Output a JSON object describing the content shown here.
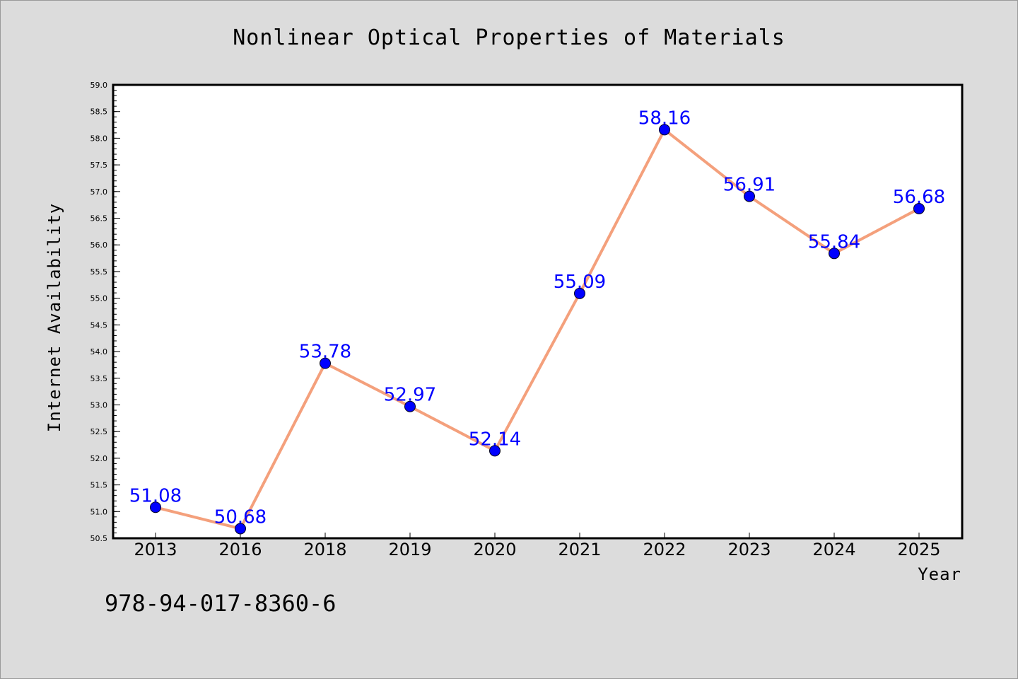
{
  "chart_data": {
    "type": "line",
    "title": "Nonlinear Optical Properties of Materials",
    "xlabel": "Year",
    "ylabel": "Internet Availability",
    "categories": [
      "2013",
      "2016",
      "2018",
      "2019",
      "2020",
      "2021",
      "2022",
      "2023",
      "2024",
      "2025"
    ],
    "values": [
      51.08,
      50.68,
      53.78,
      52.97,
      52.14,
      55.09,
      58.16,
      56.91,
      55.84,
      56.68
    ],
    "data_labels": [
      "51.08",
      "50.68",
      "53.78",
      "52.97",
      "52.14",
      "55.09",
      "58.16",
      "56.91",
      "55.84",
      "56.68"
    ],
    "ylim": [
      50.5,
      59.0
    ],
    "yticks": [
      "50.5",
      "51.0",
      "51.5",
      "52.0",
      "52.5",
      "53.0",
      "53.5",
      "54.0",
      "54.5",
      "55.0",
      "55.5",
      "56.0",
      "56.5",
      "57.0",
      "57.5",
      "58.0",
      "58.5",
      "59.0"
    ],
    "grid": false,
    "line_color": "#f4a07c",
    "marker_color": "#0000ff",
    "label_color": "#0000ff",
    "plot_background": "#ffffff",
    "figure_background": "#dcdcdc"
  },
  "annotation": {
    "isbn": "978-94-017-8360-6"
  }
}
